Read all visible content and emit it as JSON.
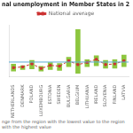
{
  "chart_data": {
    "type": "bar",
    "title": "nal unemployment in Member States in 2",
    "categories": [
      "NETHERLANDS",
      "DENMARK",
      "POLAND",
      "LUXEMBOURG",
      "ESTONIA",
      "SWEDEN",
      "BULGARIA",
      "BELGIUM",
      "LITHUANIA",
      "IRELAND",
      "SLOVENIA",
      "FINLAND",
      "LATVIA"
    ],
    "series": [
      {
        "type": "bar",
        "color": "#8dc63f",
        "low": [
          3.5,
          4.5,
          5.0,
          3.5,
          4.5,
          4.0,
          6.5,
          2.1,
          6.5,
          7.0,
          5.5,
          5.5,
          6.5
        ],
        "high": [
          8.5,
          7.5,
          11.0,
          7.0,
          9.5,
          9.0,
          13.0,
          31.3,
          11.5,
          14.0,
          11.0,
          11.5,
          14.5
        ]
      },
      {
        "type": "line",
        "name": "National average",
        "color": "#cc3333",
        "marker": "square",
        "line_style": "dashed",
        "values": [
          6.0,
          6.5,
          8.5,
          5.5,
          7.5,
          7.0,
          10.5,
          8.0,
          9.5,
          11.5,
          8.0,
          8.5,
          10.5
        ]
      }
    ],
    "reference_line": {
      "y": 9.7,
      "color": "#5bafd6"
    },
    "footnote": "nge from the region with the lowest value to the region with the highest value",
    "ylim": [
      0,
      34
    ],
    "yticks": [],
    "grid": false,
    "legend": "top",
    "tick_labels": "x"
  }
}
